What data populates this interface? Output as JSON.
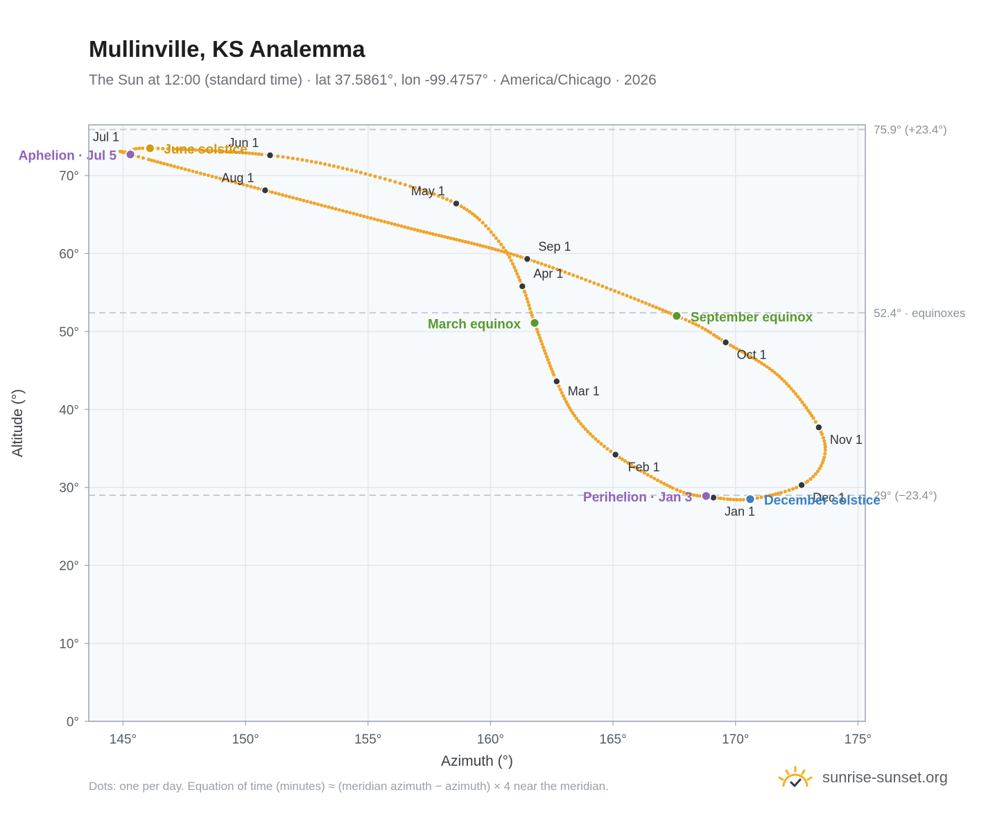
{
  "title": "Mullinville, KS Analemma",
  "subtitle": "The Sun at 12:00 (standard time) · lat 37.5861°, lon -99.4757° · America/Chicago · 2026",
  "footnote": "Dots: one per day. Equation of time (minutes) ≈ (meridian azimuth − azimuth) × 4 near the meridian.",
  "brand": {
    "name": "sunrise-sunset.org",
    "icon": "sun-logo-icon",
    "color": "#f2b01e"
  },
  "colors": {
    "path": "#f0a52a",
    "month_dot": "#33383e",
    "equinox": "#5a9a2e",
    "june_solstice": "#d49a10",
    "december_solstice": "#3a7fc4",
    "apsis": "#9064b8",
    "grid": "#e3e7ec",
    "plot_bg": "#f7fafd",
    "ref_line": "#c5cbd2"
  },
  "chart_data": {
    "type": "scatter",
    "title": "Mullinville, KS Analemma",
    "xlabel": "Azimuth (°)",
    "ylabel": "Altitude (°)",
    "xlim": [
      143.6,
      175.3
    ],
    "ylim": [
      0,
      76.5
    ],
    "x_ticks": [
      145,
      150,
      155,
      160,
      165,
      170,
      175
    ],
    "x_tick_labels": [
      "145°",
      "150°",
      "155°",
      "160°",
      "165°",
      "170°",
      "175°"
    ],
    "y_ticks": [
      0,
      10,
      20,
      30,
      40,
      50,
      60,
      70
    ],
    "y_tick_labels": [
      "0°",
      "10°",
      "20°",
      "30°",
      "40°",
      "50°",
      "60°",
      "70°"
    ],
    "grid": true,
    "reference_lines": [
      {
        "y": 75.9,
        "label": "75.9° (+23.4°)"
      },
      {
        "y": 52.4,
        "label": "52.4° · equinoxes"
      },
      {
        "y": 29.0,
        "label": "29° (−23.4°)"
      }
    ],
    "month_points": [
      {
        "label": "Jan 1",
        "x": 169.1,
        "y": 28.7
      },
      {
        "label": "Feb 1",
        "x": 165.1,
        "y": 34.2
      },
      {
        "label": "Mar 1",
        "x": 162.7,
        "y": 43.6
      },
      {
        "label": "Apr 1",
        "x": 161.3,
        "y": 55.8
      },
      {
        "label": "May 1",
        "x": 158.6,
        "y": 66.4
      },
      {
        "label": "Jun 1",
        "x": 151.0,
        "y": 72.6
      },
      {
        "label": "Jul 1",
        "x": 145.3,
        "y": 73.0
      },
      {
        "label": "Aug 1",
        "x": 150.8,
        "y": 68.1
      },
      {
        "label": "Sep 1",
        "x": 161.5,
        "y": 59.3
      },
      {
        "label": "Oct 1",
        "x": 169.6,
        "y": 48.6
      },
      {
        "label": "Nov 1",
        "x": 173.4,
        "y": 37.7
      },
      {
        "label": "Dec 1",
        "x": 172.7,
        "y": 30.3
      }
    ],
    "events": [
      {
        "label": "March equinox",
        "x": 161.8,
        "y": 51.1,
        "kind": "equinox"
      },
      {
        "label": "June solstice",
        "x": 146.1,
        "y": 73.5,
        "kind": "june_solstice"
      },
      {
        "label": "September equinox",
        "x": 167.6,
        "y": 52.0,
        "kind": "equinox"
      },
      {
        "label": "December solstice",
        "x": 170.6,
        "y": 28.5,
        "kind": "december_solstice"
      },
      {
        "label": "Perihelion · Jan 3",
        "x": 168.8,
        "y": 28.9,
        "kind": "apsis"
      },
      {
        "label": "Aphelion · Jul 5",
        "x": 145.3,
        "y": 72.7,
        "kind": "apsis"
      }
    ],
    "path_waypoints": [
      {
        "x": 169.1,
        "y": 28.7
      },
      {
        "x": 167.6,
        "y": 29.7
      },
      {
        "x": 165.1,
        "y": 34.2
      },
      {
        "x": 163.6,
        "y": 38.5
      },
      {
        "x": 162.7,
        "y": 43.6
      },
      {
        "x": 161.8,
        "y": 51.1
      },
      {
        "x": 161.3,
        "y": 55.8
      },
      {
        "x": 160.4,
        "y": 61.3
      },
      {
        "x": 158.6,
        "y": 66.4
      },
      {
        "x": 154.8,
        "y": 70.3
      },
      {
        "x": 151.0,
        "y": 72.6
      },
      {
        "x": 146.1,
        "y": 73.5
      },
      {
        "x": 145.3,
        "y": 73.0
      },
      {
        "x": 145.3,
        "y": 72.7
      },
      {
        "x": 150.8,
        "y": 68.1
      },
      {
        "x": 156.5,
        "y": 63.4
      },
      {
        "x": 161.5,
        "y": 59.3
      },
      {
        "x": 167.6,
        "y": 52.0
      },
      {
        "x": 169.6,
        "y": 48.6
      },
      {
        "x": 171.8,
        "y": 44.2
      },
      {
        "x": 173.4,
        "y": 37.7
      },
      {
        "x": 173.6,
        "y": 33.6
      },
      {
        "x": 172.7,
        "y": 30.3
      },
      {
        "x": 170.6,
        "y": 28.5
      },
      {
        "x": 169.1,
        "y": 28.7
      }
    ]
  }
}
